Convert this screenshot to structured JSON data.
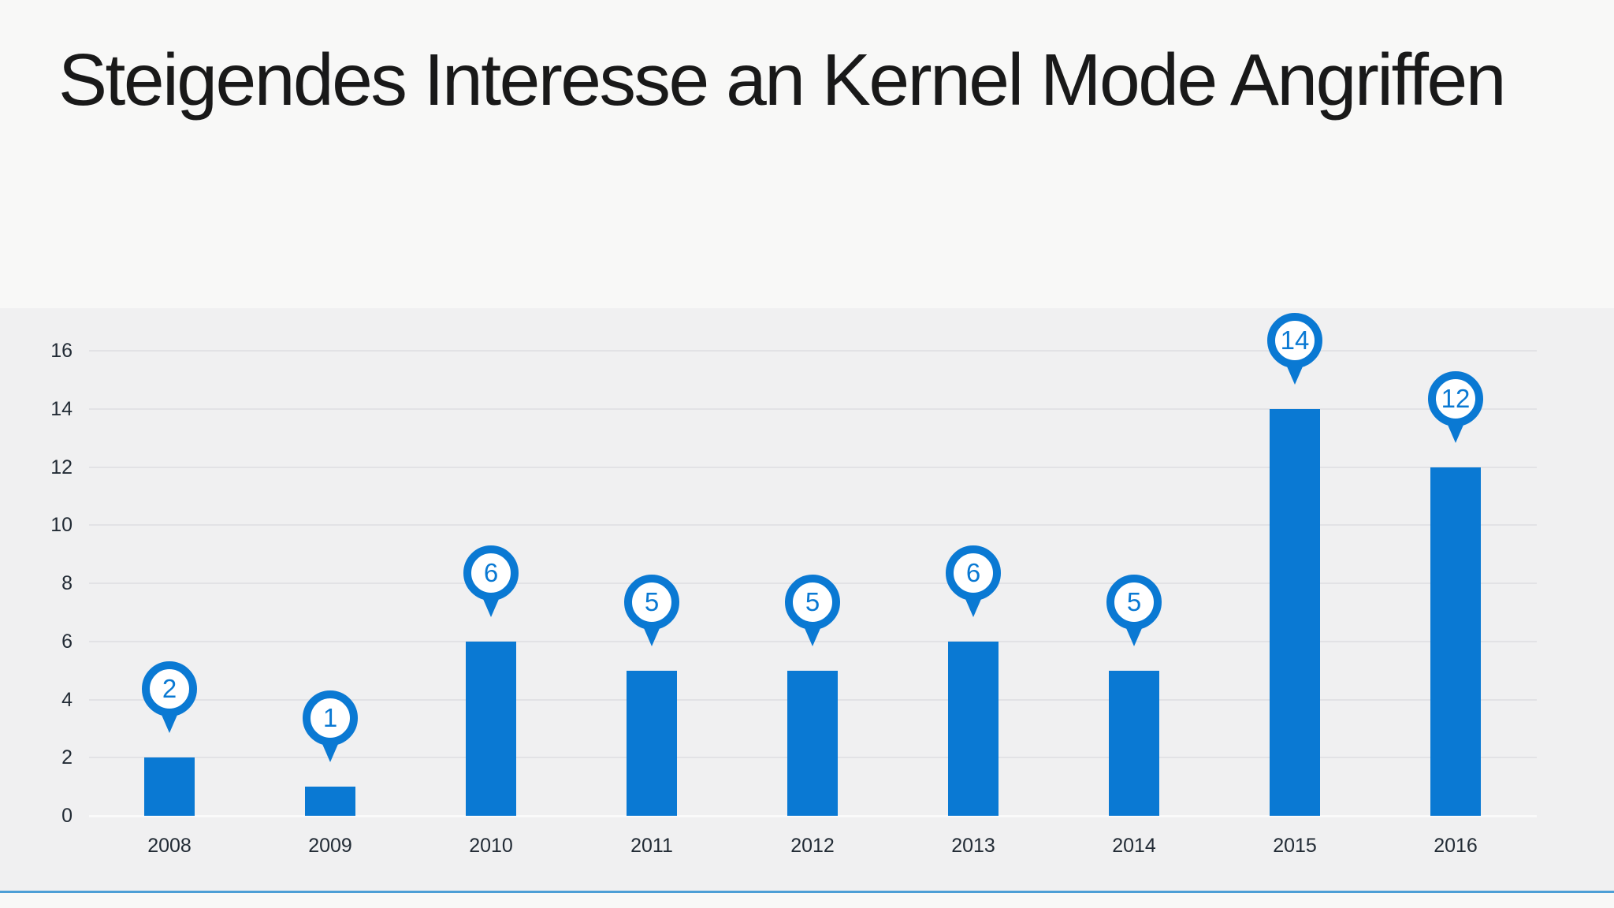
{
  "title": "Steigendes Interesse an Kernel Mode Angriffen",
  "colors": {
    "page_background": "#f8f8f7",
    "chart_band_background": "#f0f0f1",
    "bar_blue": "#0a79d3",
    "pin_blue": "#0a79d3",
    "pin_fill": "#ffffff",
    "gridline": "#e2e2e5",
    "zero_line": "#fafafa",
    "axis_text": "#222b35",
    "title_text": "#191919",
    "bottom_accent_line": "#4d9fd6"
  },
  "chart_data": {
    "type": "bar",
    "title": "Steigendes Interesse an Kernel Mode Angriffen",
    "categories": [
      "2008",
      "2009",
      "2010",
      "2011",
      "2012",
      "2013",
      "2014",
      "2015",
      "2016"
    ],
    "values": [
      2,
      1,
      6,
      5,
      5,
      6,
      5,
      14,
      12
    ],
    "xlabel": "",
    "ylabel": "",
    "ylim": [
      0,
      16
    ],
    "yticks": [
      0,
      2,
      4,
      6,
      8,
      10,
      12,
      14,
      16
    ],
    "grid": true,
    "legend": false,
    "data_labels": "map-pin callout above each bar showing its value"
  }
}
